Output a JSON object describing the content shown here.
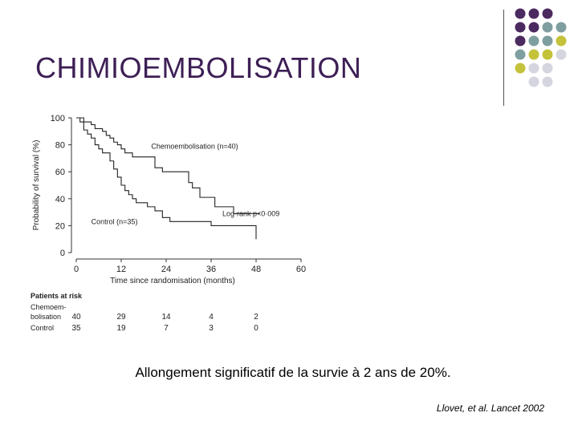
{
  "slide": {
    "title": "CHIMIOEMBOLISATION",
    "caption": "Allongement significatif de la survie à 2 ans de 20%.",
    "citation": "Llovet, et al. Lancet 2002"
  },
  "colors": {
    "title": "#3d1f55",
    "dot_purple": "#4b2a60",
    "dot_teal": "#7f9ea0",
    "dot_olive": "#c4c23a",
    "dot_lavender": "#d5d5e0",
    "line_chemo": "#222222",
    "line_control": "#222222"
  },
  "decoration": {
    "dot_grid": [
      [
        "purple",
        "purple",
        "purple",
        null
      ],
      [
        "purple",
        "purple",
        "teal",
        "teal"
      ],
      [
        "purple",
        "teal",
        "teal",
        "olive"
      ],
      [
        "teal",
        "olive",
        "olive",
        "lavender"
      ],
      [
        "olive",
        "lavender",
        "lavender",
        null
      ],
      [
        null,
        "lavender",
        "lavender",
        null
      ]
    ]
  },
  "chart_data": {
    "type": "line",
    "xlabel": "Time since randomisation (months)",
    "ylabel": "Probability of survival (%)",
    "xlim": [
      0,
      60
    ],
    "ylim": [
      0,
      100
    ],
    "xticks": [
      0,
      12,
      24,
      36,
      48,
      60
    ],
    "yticks": [
      0,
      20,
      40,
      60,
      80,
      100
    ],
    "step": true,
    "series": [
      {
        "name": "Chemoembolisation (n=40)",
        "x": [
          0,
          2,
          4,
          5,
          7,
          8,
          9,
          10,
          11,
          12,
          13,
          15,
          21,
          23,
          24,
          30,
          31,
          33,
          37,
          42,
          48,
          49
        ],
        "y": [
          100,
          97,
          95,
          92,
          90,
          87,
          85,
          82,
          80,
          77,
          74,
          71,
          63,
          60,
          60,
          52,
          48,
          41,
          34,
          29,
          29,
          29
        ]
      },
      {
        "name": "Control (n=35)",
        "x": [
          0,
          1,
          2,
          3,
          4,
          5,
          6,
          7,
          9,
          10,
          11,
          12,
          13,
          14,
          15,
          16,
          19,
          21,
          23,
          25,
          30,
          36,
          43,
          48
        ],
        "y": [
          100,
          97,
          91,
          88,
          85,
          80,
          77,
          74,
          68,
          62,
          56,
          50,
          46,
          43,
          40,
          37,
          34,
          31,
          26,
          23,
          23,
          20,
          20,
          10
        ]
      }
    ],
    "annotations": [
      {
        "text": "Chemoembolisation (n=40)",
        "x": 20,
        "y": 77
      },
      {
        "text": "Log-rank p<0·009",
        "x": 39,
        "y": 27
      },
      {
        "text": "Control (n=35)",
        "x": 4,
        "y": 21
      }
    ],
    "at_risk": {
      "header": "Patients at risk",
      "rows": [
        {
          "label_lines": [
            "Chemoem-",
            "bolisation"
          ],
          "values": [
            "40",
            "29",
            "14",
            "4",
            "2"
          ]
        },
        {
          "label_lines": [
            "Control"
          ],
          "values": [
            "35",
            "19",
            "7",
            "3",
            "0"
          ]
        }
      ],
      "times": [
        0,
        12,
        24,
        36,
        48
      ]
    }
  }
}
